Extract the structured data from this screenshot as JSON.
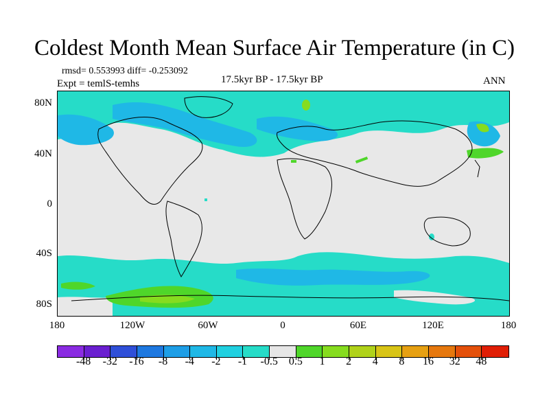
{
  "title": "Coldest Month Mean Surface Air Temperature (in C)",
  "stats": {
    "rmsd_line": "rmsd= 0.553993 diff= -0.253092",
    "expt_line": "Expt = temlS-temhs"
  },
  "period": "17.5kyr BP - 17.5kyr BP",
  "season": "ANN",
  "lat_labels": [
    "80N",
    "40N",
    "0",
    "40S",
    "80S"
  ],
  "lon_labels": [
    "180",
    "120W",
    "60W",
    "0",
    "60E",
    "120E",
    "180"
  ],
  "colorbar": {
    "labels": [
      "-48",
      "-32",
      "-16",
      "-8",
      "-4",
      "-2",
      "-1",
      "-0.5",
      "0.5",
      "1",
      "2",
      "4",
      "8",
      "16",
      "32",
      "48"
    ],
    "colors": [
      "#8a2be2",
      "#6a1fd0",
      "#2f4fd8",
      "#1e78e0",
      "#1e9ee6",
      "#1fb8e6",
      "#20d0e0",
      "#26dcc8",
      "#e6e6e6",
      "#4fd62a",
      "#86dc1f",
      "#b0d21a",
      "#d8c416",
      "#e6a012",
      "#e6780e",
      "#e4500a",
      "#e01e05"
    ]
  },
  "colors": {
    "land_neutral": "#e8e8e8",
    "cyan": "#26dcc8",
    "light_blue": "#1fb8e6",
    "green": "#4fd62a",
    "yellow_green": "#86dc1f"
  }
}
